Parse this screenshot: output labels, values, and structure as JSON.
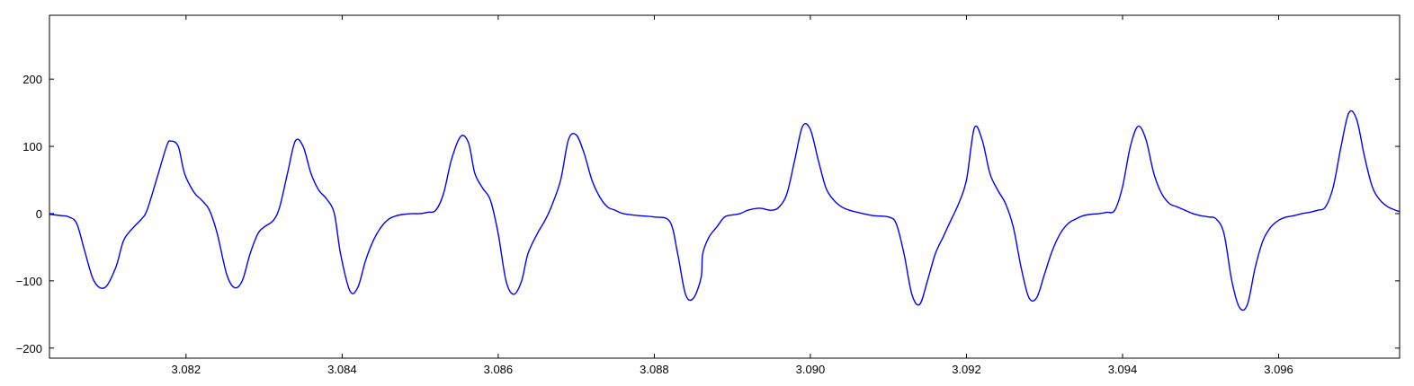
{
  "colors": {
    "background": "#ffffff",
    "axes": "#000000",
    "series": "#0000ff"
  },
  "chart_data": {
    "type": "line",
    "title": "",
    "xlabel": "",
    "ylabel": "",
    "xlim": [
      3.08025,
      3.09755
    ],
    "ylim": [
      -215,
      295
    ],
    "grid": false,
    "legend": "none",
    "x_ticks": [
      3.082,
      3.084,
      3.086,
      3.088,
      3.09,
      3.092,
      3.094,
      3.096
    ],
    "x_tick_labels": [
      "3.082",
      "3.084",
      "3.086",
      "3.088",
      "3.090",
      "3.092",
      "3.094",
      "3.096"
    ],
    "y_ticks": [
      200,
      100,
      0,
      -100,
      -200
    ],
    "y_tick_labels": [
      "200",
      "100",
      "0",
      "−100",
      "−200"
    ],
    "series": [
      {
        "color": "#0000ff",
        "x": [
          3.08025,
          3.0804,
          3.0805,
          3.0806,
          3.0807,
          3.08082,
          3.08096,
          3.0811,
          3.0812,
          3.08133,
          3.08143,
          3.0815,
          3.08162,
          3.08175,
          3.0818,
          3.0819,
          3.08198,
          3.0821,
          3.0822,
          3.0823,
          3.0824,
          3.08252,
          3.08262,
          3.08272,
          3.08282,
          3.08292,
          3.083,
          3.08312,
          3.0832,
          3.0833,
          3.0834,
          3.0835,
          3.0836,
          3.0837,
          3.0838,
          3.0839,
          3.08398,
          3.0841,
          3.0842,
          3.0843,
          3.0844,
          3.0845,
          3.0846,
          3.0847,
          3.0848,
          3.0849,
          3.085,
          3.0851,
          3.0852,
          3.0853,
          3.0854,
          3.08552,
          3.08562,
          3.0857,
          3.0858,
          3.0859,
          3.086,
          3.0861,
          3.0862,
          3.0863,
          3.08638,
          3.0865,
          3.0866,
          3.08668,
          3.0868,
          3.0869,
          3.087,
          3.0871,
          3.0872,
          3.0873,
          3.0874,
          3.0875,
          3.0876,
          3.0878,
          3.088,
          3.0882,
          3.0883,
          3.0884,
          3.0885,
          3.0886,
          3.08862,
          3.0887,
          3.0888,
          3.0889,
          3.089,
          3.0891,
          3.0892,
          3.08935,
          3.0895,
          3.0896,
          3.0897,
          3.0898,
          3.0899,
          3.09,
          3.0901,
          3.0902,
          3.0903,
          3.0904,
          3.0905,
          3.0906,
          3.0908,
          3.091,
          3.0911,
          3.0912,
          3.0913,
          3.0914,
          3.0915,
          3.0916,
          3.0917,
          3.0918,
          3.0919,
          3.092,
          3.0921,
          3.0922,
          3.0923,
          3.0924,
          3.0925,
          3.0926,
          3.0927,
          3.0928,
          3.0929,
          3.093,
          3.0931,
          3.0932,
          3.0933,
          3.0934,
          3.0935,
          3.0936,
          3.0937,
          3.0938,
          3.0939,
          3.094,
          3.0941,
          3.0942,
          3.0943,
          3.0944,
          3.0945,
          3.0946,
          3.0947,
          3.0948,
          3.0949,
          3.095,
          3.0951,
          3.0952,
          3.0953,
          3.0954,
          3.0955,
          3.0956,
          3.0957,
          3.0958,
          3.0959,
          3.096,
          3.0961,
          3.0962,
          3.0963,
          3.0964,
          3.0965,
          3.0966,
          3.0967,
          3.0968,
          3.0969,
          3.097,
          3.0971,
          3.0972,
          3.0973,
          3.0974,
          3.0975,
          3.09755
        ],
        "y": [
          -1,
          -3,
          -5,
          -15,
          -55,
          -100,
          -110,
          -80,
          -40,
          -20,
          -8,
          5,
          50,
          100,
          108,
          100,
          60,
          32,
          20,
          5,
          -30,
          -90,
          -110,
          -100,
          -60,
          -30,
          -20,
          -10,
          10,
          60,
          108,
          100,
          60,
          35,
          22,
          0,
          -60,
          -115,
          -110,
          -70,
          -40,
          -20,
          -8,
          -3,
          -1,
          0,
          0,
          2,
          5,
          30,
          80,
          115,
          105,
          60,
          38,
          20,
          -30,
          -100,
          -120,
          -100,
          -60,
          -30,
          -10,
          10,
          50,
          110,
          117,
          90,
          50,
          25,
          10,
          5,
          0,
          -3,
          -5,
          -12,
          -60,
          -120,
          -126,
          -95,
          -60,
          -35,
          -20,
          -5,
          -2,
          0,
          5,
          8,
          5,
          10,
          30,
          80,
          130,
          125,
          80,
          38,
          20,
          10,
          5,
          2,
          -3,
          -5,
          -15,
          -60,
          -120,
          -135,
          -100,
          -60,
          -35,
          -10,
          15,
          50,
          127,
          110,
          60,
          35,
          15,
          -20,
          -80,
          -125,
          -125,
          -90,
          -55,
          -30,
          -15,
          -8,
          -3,
          -1,
          0,
          2,
          5,
          40,
          100,
          130,
          110,
          60,
          30,
          15,
          10,
          5,
          0,
          -3,
          -5,
          -8,
          -30,
          -100,
          -140,
          -135,
          -80,
          -40,
          -20,
          -10,
          -5,
          -3,
          0,
          2,
          5,
          10,
          40,
          100,
          150,
          140,
          85,
          40,
          20,
          10,
          5,
          3
        ]
      }
    ]
  }
}
